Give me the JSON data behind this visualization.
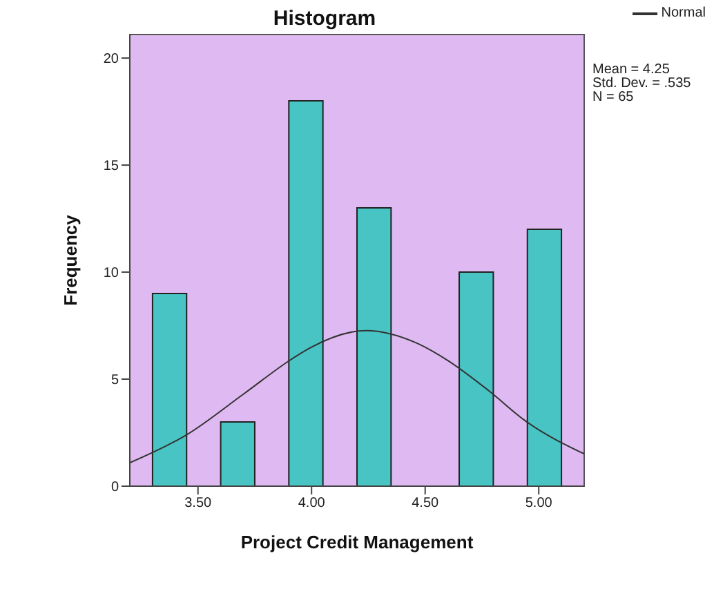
{
  "chart_data": {
    "type": "histogram",
    "title": "Histogram",
    "xlabel": "Project Credit Management",
    "ylabel": "Frequency",
    "bins": [
      3.3,
      3.45,
      3.6,
      3.75,
      3.9,
      4.05,
      4.2,
      4.35,
      4.5,
      4.65,
      4.8,
      4.95,
      5.1
    ],
    "values": [
      9,
      0,
      3,
      0,
      18,
      0,
      13,
      0,
      0,
      10,
      0,
      12
    ],
    "color": "#48c4c4",
    "series": [
      {
        "name": "Normal",
        "type": "line",
        "color": "#333333",
        "x": [
          3.2,
          3.45,
          3.7,
          3.91,
          4.0,
          4.24,
          4.46,
          4.6,
          4.78,
          4.94,
          5.2
        ],
        "values": [
          1.09,
          2.4,
          4.3,
          5.92,
          6.5,
          7.27,
          6.7,
          5.87,
          4.46,
          3.06,
          1.51
        ]
      }
    ],
    "annotations": [
      "Mean = 4.25",
      "Std. Dev. = .535",
      "N = 65"
    ],
    "xlim": [
      3.2,
      5.2
    ],
    "xticks": [
      {
        "value": 3.5,
        "label": "3.50"
      },
      {
        "value": 4,
        "label": "4.00"
      },
      {
        "value": 4.5,
        "label": "4.50"
      },
      {
        "value": 5,
        "label": "5.00"
      }
    ],
    "ylim": [
      0,
      21.1
    ],
    "yticks": [
      0,
      5,
      10,
      15,
      20
    ],
    "legend": "top right",
    "marker": "none",
    "line_style": "solid"
  }
}
